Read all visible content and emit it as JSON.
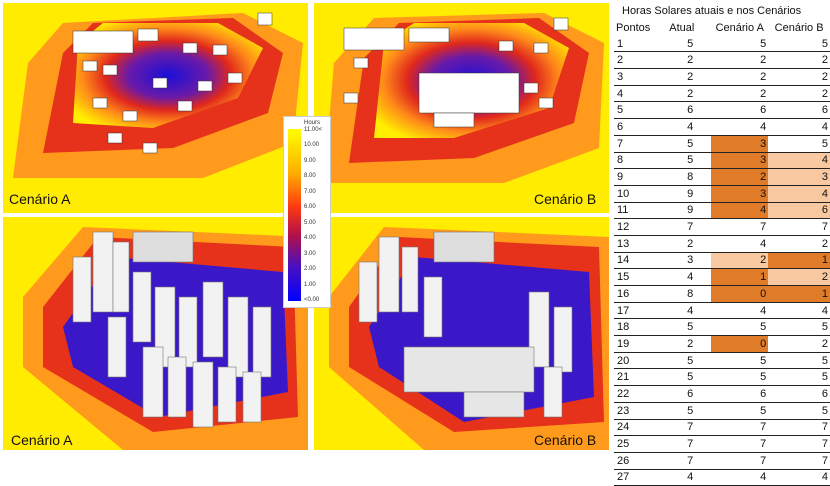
{
  "panels": [
    {
      "id": "a-top",
      "caption": "Cenário A"
    },
    {
      "id": "b-top",
      "caption": "Cenário B"
    },
    {
      "id": "a-bottom",
      "caption": "Cenário A"
    },
    {
      "id": "b-bottom",
      "caption": "Cenário B"
    }
  ],
  "legend": {
    "unit": "Hours",
    "ticks": [
      "11.00<",
      "10.00",
      "9.00",
      "8.00",
      "7.00",
      "6.00",
      "5.00",
      "4.00",
      "3.00",
      "2.00",
      "1.00",
      "<0.00"
    ]
  },
  "table": {
    "title": "Horas Solares atuais e nos Cenários",
    "headers": [
      "Pontos",
      "Atual",
      "Cenário A",
      "Cenário B"
    ],
    "rows": [
      {
        "p": "1",
        "atual": "5",
        "a": "5",
        "b": "5",
        "ca": "",
        "cb": ""
      },
      {
        "p": "2",
        "atual": "2",
        "a": "2",
        "b": "2",
        "ca": "",
        "cb": ""
      },
      {
        "p": "3",
        "atual": "2",
        "a": "2",
        "b": "2",
        "ca": "",
        "cb": ""
      },
      {
        "p": "4",
        "atual": "2",
        "a": "2",
        "b": "2",
        "ca": "",
        "cb": ""
      },
      {
        "p": "5",
        "atual": "6",
        "a": "6",
        "b": "6",
        "ca": "",
        "cb": ""
      },
      {
        "p": "6",
        "atual": "4",
        "a": "4",
        "b": "4",
        "ca": "",
        "cb": ""
      },
      {
        "p": "7",
        "atual": "5",
        "a": "3",
        "b": "5",
        "ca": "dark",
        "cb": ""
      },
      {
        "p": "8",
        "atual": "5",
        "a": "3",
        "b": "4",
        "ca": "dark",
        "cb": "light"
      },
      {
        "p": "9",
        "atual": "8",
        "a": "2",
        "b": "3",
        "ca": "dark",
        "cb": "light"
      },
      {
        "p": "10",
        "atual": "9",
        "a": "3",
        "b": "4",
        "ca": "dark",
        "cb": "light"
      },
      {
        "p": "11",
        "atual": "9",
        "a": "4",
        "b": "6",
        "ca": "dark",
        "cb": "light"
      },
      {
        "p": "12",
        "atual": "7",
        "a": "7",
        "b": "7",
        "ca": "",
        "cb": ""
      },
      {
        "p": "13",
        "atual": "2",
        "a": "4",
        "b": "2",
        "ca": "",
        "cb": ""
      },
      {
        "p": "14",
        "atual": "3",
        "a": "2",
        "b": "1",
        "ca": "light",
        "cb": "dark"
      },
      {
        "p": "15",
        "atual": "4",
        "a": "1",
        "b": "2",
        "ca": "dark",
        "cb": "light"
      },
      {
        "p": "16",
        "atual": "8",
        "a": "0",
        "b": "1",
        "ca": "dark",
        "cb": "dark"
      },
      {
        "p": "17",
        "atual": "4",
        "a": "4",
        "b": "4",
        "ca": "",
        "cb": ""
      },
      {
        "p": "18",
        "atual": "5",
        "a": "5",
        "b": "5",
        "ca": "",
        "cb": ""
      },
      {
        "p": "19",
        "atual": "2",
        "a": "0",
        "b": "2",
        "ca": "dark",
        "cb": ""
      },
      {
        "p": "20",
        "atual": "5",
        "a": "5",
        "b": "5",
        "ca": "",
        "cb": ""
      },
      {
        "p": "21",
        "atual": "5",
        "a": "5",
        "b": "5",
        "ca": "",
        "cb": ""
      },
      {
        "p": "22",
        "atual": "6",
        "a": "6",
        "b": "6",
        "ca": "",
        "cb": ""
      },
      {
        "p": "23",
        "atual": "5",
        "a": "5",
        "b": "5",
        "ca": "",
        "cb": ""
      },
      {
        "p": "24",
        "atual": "7",
        "a": "7",
        "b": "7",
        "ca": "",
        "cb": ""
      },
      {
        "p": "25",
        "atual": "7",
        "a": "7",
        "b": "7",
        "ca": "",
        "cb": ""
      },
      {
        "p": "26",
        "atual": "7",
        "a": "7",
        "b": "7",
        "ca": "",
        "cb": ""
      },
      {
        "p": "27",
        "atual": "4",
        "a": "4",
        "b": "4",
        "ca": "",
        "cb": ""
      }
    ]
  },
  "colors": {
    "dark": "#e07b2a",
    "light": "#f8c8a0"
  }
}
